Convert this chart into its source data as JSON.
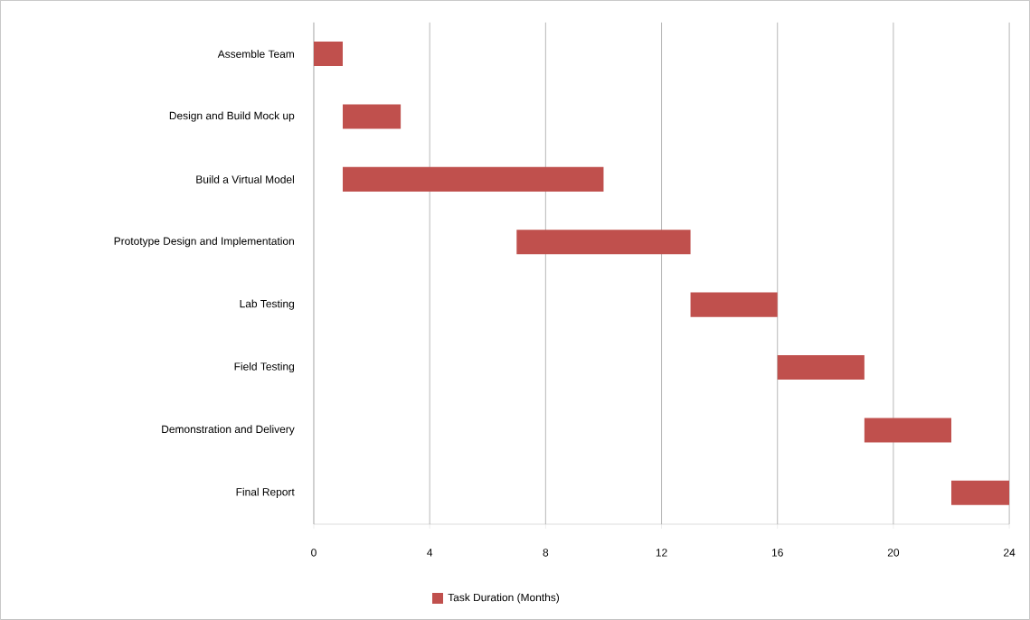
{
  "chart_data": {
    "type": "bar",
    "orientation": "horizontal",
    "categories": [
      "Assemble Team",
      "Design and Build Mock up",
      "Build a Virtual Model",
      "Prototype Design and Implementation",
      "Lab Testing",
      "Field Testing",
      "Demonstration and Delivery",
      "Final Report"
    ],
    "series": [
      {
        "name": "Task Duration (Months)",
        "color": "#c0504d",
        "base": [
          0,
          1,
          1,
          7,
          13,
          16,
          19,
          22
        ],
        "values": [
          1,
          2,
          9,
          6,
          3,
          3,
          3,
          2
        ]
      }
    ],
    "xlim": [
      0,
      24
    ],
    "xticks": [
      0,
      4,
      8,
      12,
      16,
      20,
      24
    ],
    "grid": "x",
    "legend": "bottom"
  }
}
